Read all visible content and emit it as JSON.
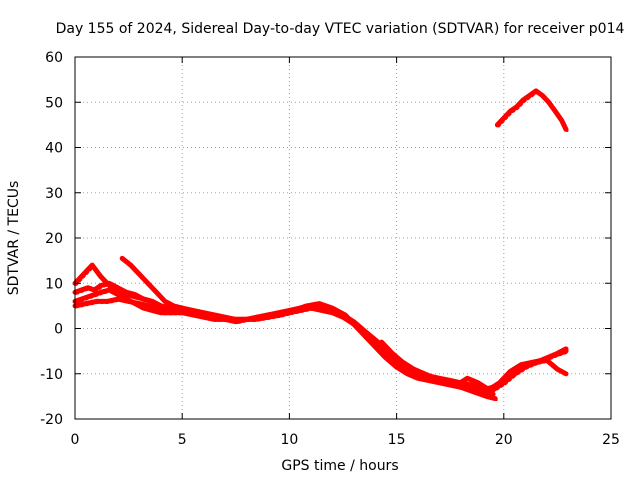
{
  "chart_data": {
    "type": "line",
    "title": "Day 155 of 2024, Sidereal Day-to-day VTEC variation (SDTVAR) for receiver p014",
    "xlabel": "GPS time / hours",
    "ylabel": "SDTVAR / TECUs",
    "xlim": [
      0,
      25
    ],
    "ylim": [
      -20,
      60
    ],
    "xticks": [
      0,
      5,
      10,
      15,
      20,
      25
    ],
    "yticks": [
      -20,
      -10,
      0,
      10,
      20,
      30,
      40,
      50,
      60
    ],
    "grid": true,
    "color": "#ff0000",
    "series": [
      {
        "name": "track-1",
        "x": [
          0.0,
          0.3,
          0.6,
          0.9,
          1.2,
          1.6,
          2.0,
          2.4,
          2.8,
          3.2,
          3.6,
          4.0,
          4.5,
          5.0,
          5.5,
          6.0,
          6.5,
          7.0,
          7.5,
          8.0,
          8.5,
          9.0,
          9.5,
          10.0,
          10.5,
          11.0,
          11.5,
          12.0,
          12.5,
          13.0,
          13.5,
          14.0,
          14.5,
          15.0,
          15.5,
          16.0,
          16.5,
          17.0,
          17.5,
          18.0,
          18.5,
          19.0,
          19.5,
          20.0,
          20.5,
          21.0,
          21.5,
          22.0,
          22.5,
          22.9
        ],
        "y": [
          8,
          8.5,
          9,
          8.5,
          9.5,
          10,
          9,
          8,
          7.5,
          6.5,
          6,
          5,
          4.5,
          4,
          3.5,
          3,
          2.5,
          2,
          2,
          2,
          2.5,
          3,
          3,
          3.5,
          4,
          4.5,
          4,
          3.5,
          2.5,
          1,
          -1,
          -3,
          -5,
          -7.5,
          -9.5,
          -10.5,
          -11,
          -11.5,
          -12,
          -12.5,
          -13,
          -13.5,
          -13,
          -11.5,
          -10,
          -8.5,
          -7.5,
          -6.5,
          -5.5,
          -4.5
        ]
      },
      {
        "name": "track-2",
        "x": [
          0.0,
          0.3,
          0.6,
          0.9,
          1.2,
          1.6,
          2.0,
          2.4,
          2.8,
          3.2,
          3.6,
          4.0,
          4.5,
          5.0,
          5.5,
          6.0,
          6.5,
          7.0,
          7.5,
          8.0,
          8.5,
          9.0,
          9.5,
          10.0,
          10.5,
          11.0,
          11.5,
          12.0,
          12.5,
          13.0,
          13.5,
          14.0,
          14.5,
          15.0,
          15.5,
          16.0,
          16.5,
          17.0,
          17.5,
          18.0,
          18.5,
          19.0,
          19.5,
          20.0,
          20.5,
          21.0,
          21.5,
          22.0,
          22.5,
          22.9
        ],
        "y": [
          6,
          6.5,
          7,
          7.5,
          8,
          8.5,
          7.5,
          6.5,
          5.5,
          4.5,
          4,
          3.5,
          3.5,
          3.5,
          3,
          2.5,
          2,
          2,
          1.5,
          2,
          2.5,
          2.5,
          3,
          3.5,
          4.5,
          5,
          4.5,
          4,
          3,
          1.5,
          -0.5,
          -2.5,
          -4.5,
          -7,
          -9,
          -10,
          -10.5,
          -11,
          -11.5,
          -12,
          -12.5,
          -13,
          -13.5,
          -12,
          -10,
          -8,
          -7.5,
          -7,
          -9,
          -10
        ]
      },
      {
        "name": "track-3",
        "x": [
          0.0,
          0.4,
          0.8,
          1.2,
          1.6,
          2.0,
          2.4,
          2.8,
          3.2,
          3.6,
          4.0,
          4.4,
          4.8,
          5.2,
          5.6,
          6.0,
          6.6,
          7.2,
          7.8,
          8.4,
          9.0,
          9.6,
          10.2,
          10.8,
          11.4,
          12.0,
          12.6,
          13.2,
          13.8,
          14.4,
          15.0,
          15.6,
          16.2,
          16.8,
          17.4,
          18.0,
          18.6,
          19.2,
          19.6
        ],
        "y": [
          10,
          12,
          14,
          11.5,
          9.5,
          8,
          7.5,
          7,
          6.5,
          6,
          5,
          4.5,
          4,
          4,
          3.5,
          3,
          2.5,
          2,
          2,
          2,
          2.5,
          3,
          4,
          5,
          5.5,
          4.5,
          3,
          0,
          -3,
          -6,
          -8.5,
          -10,
          -11,
          -11.5,
          -12,
          -13,
          -14,
          -15,
          -15.5
        ]
      },
      {
        "name": "track-4",
        "x": [
          2.2,
          2.6,
          3.0,
          3.4,
          3.8,
          4.2,
          4.6,
          5.0,
          5.5,
          6.0,
          6.5,
          7.0,
          7.5,
          8.0,
          8.5,
          9.0,
          9.5,
          10.0,
          10.5,
          11.0,
          11.5,
          12.0,
          12.5,
          13.0,
          13.5,
          14.0,
          14.5,
          15.0,
          15.5,
          16.0,
          16.5,
          17.0,
          17.5,
          18.0,
          18.5,
          19.0,
          19.5
        ],
        "y": [
          15.5,
          14,
          12,
          10,
          8,
          6,
          5,
          4.5,
          4,
          3.5,
          3,
          2.5,
          2,
          2,
          2.5,
          3,
          3.5,
          4,
          4.5,
          5,
          4.5,
          4,
          3,
          1,
          -1.5,
          -4,
          -6.5,
          -8.5,
          -10,
          -11,
          -11.5,
          -12,
          -12.5,
          -13,
          -13.5,
          -14,
          -14.5
        ]
      },
      {
        "name": "track-5",
        "x": [
          0.0,
          0.5,
          1.0,
          1.5,
          2.0,
          2.5,
          3.0,
          3.5,
          4.0,
          4.5,
          5.0
        ],
        "y": [
          5,
          5.5,
          6,
          6,
          6.5,
          6,
          5.5,
          5,
          4.5,
          4,
          3.5
        ]
      },
      {
        "name": "track-6",
        "x": [
          14.3,
          14.8,
          15.3,
          15.8,
          16.3,
          16.8,
          17.3,
          17.8,
          18.3,
          18.8,
          19.3,
          19.8,
          20.3,
          20.8,
          21.3,
          21.8,
          22.3,
          22.9
        ],
        "y": [
          -3,
          -5.5,
          -7.5,
          -9,
          -10,
          -11,
          -12,
          -12.5,
          -11,
          -12,
          -13.5,
          -12,
          -9.5,
          -8,
          -7.5,
          -7,
          -6,
          -5
        ]
      },
      {
        "name": "track-7",
        "x": [
          19.7,
          20.0,
          20.3,
          20.6,
          20.9,
          21.2,
          21.5,
          21.8,
          22.1,
          22.4,
          22.7,
          22.9
        ],
        "y": [
          45,
          46.5,
          48,
          49,
          50.5,
          51.5,
          52.5,
          51.5,
          50,
          48,
          46,
          44
        ]
      }
    ]
  }
}
